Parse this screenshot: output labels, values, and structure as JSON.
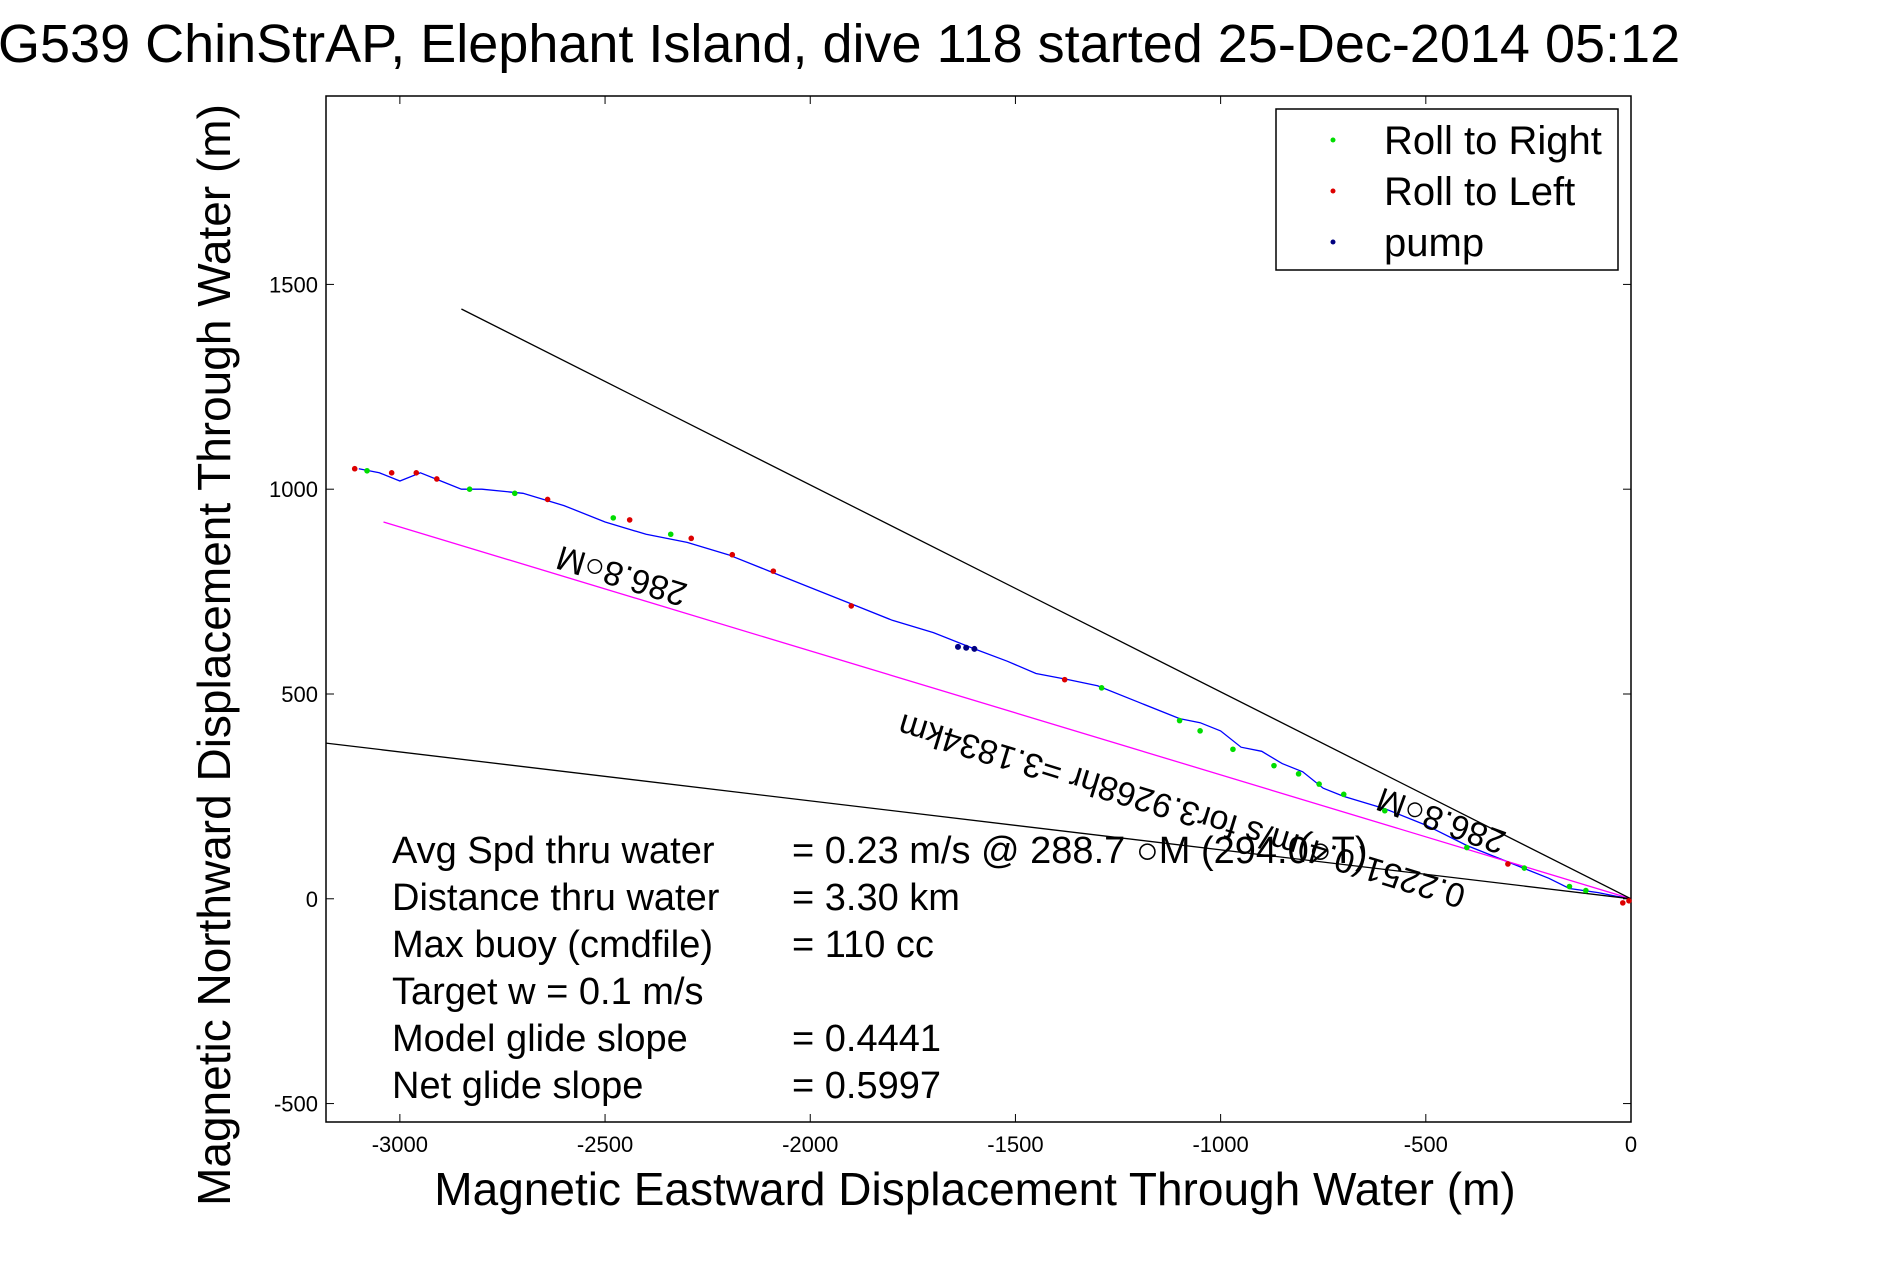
{
  "chart_data": {
    "type": "line",
    "title": "G539 ChinStrAP, Elephant Island, dive 118 started 25-Dec-2014 05:12",
    "xlabel": "Magnetic Eastward Displacement Through Water (m)",
    "ylabel": "Magnetic Northward Displacement Through Water (m)",
    "xlim": [
      -3180,
      0
    ],
    "ylim": [
      -545,
      1960
    ],
    "xticks": [
      -3000,
      -2500,
      -2000,
      -1500,
      -1000,
      -500,
      0
    ],
    "yticks": [
      -500,
      0,
      500,
      1000,
      1500
    ],
    "grid": false,
    "legend_position": "top-right",
    "legend": [
      {
        "label": "Roll to Right",
        "color": "#00dd00"
      },
      {
        "label": "Roll to Left",
        "color": "#dd0000"
      },
      {
        "label": "pump",
        "color": "#000080"
      }
    ],
    "series": [
      {
        "name": "track",
        "color": "#0000ff",
        "x": [
          0,
          -30,
          -80,
          -150,
          -200,
          -250,
          -300,
          -400,
          -500,
          -600,
          -700,
          -750,
          -800,
          -850,
          -900,
          -950,
          -1000,
          -1050,
          -1100,
          -1200,
          -1300,
          -1370,
          -1450,
          -1520,
          -1600,
          -1700,
          -1800,
          -1900,
          -2000,
          -2100,
          -2200,
          -2300,
          -2400,
          -2500,
          -2600,
          -2700,
          -2800,
          -2850,
          -2900,
          -2950,
          -3000,
          -3050,
          -3100
        ],
        "y": [
          0,
          5,
          15,
          25,
          50,
          70,
          90,
          130,
          180,
          220,
          250,
          270,
          310,
          330,
          360,
          370,
          410,
          430,
          440,
          480,
          520,
          535,
          550,
          580,
          610,
          650,
          680,
          720,
          760,
          800,
          840,
          870,
          890,
          920,
          960,
          990,
          1000,
          1000,
          1020,
          1040,
          1020,
          1040,
          1050
        ]
      },
      {
        "name": "course",
        "color": "#ff00ff",
        "x": [
          0,
          -3040
        ],
        "y": [
          0,
          920
        ]
      },
      {
        "name": "upper-bound",
        "color": "#000000",
        "x": [
          0,
          -2850
        ],
        "y": [
          0,
          1440
        ]
      },
      {
        "name": "lower-bound",
        "color": "#000000",
        "x": [
          0,
          -3180
        ],
        "y": [
          0,
          380
        ]
      }
    ],
    "markers": {
      "roll_right": {
        "color": "#00dd00",
        "x": [
          -3080,
          -2830,
          -2720,
          -2480,
          -2340,
          -1290,
          -1100,
          -1050,
          -970,
          -870,
          -810,
          -760,
          -700,
          -600,
          -400,
          -260,
          -150,
          -110
        ],
        "y": [
          1045,
          1000,
          990,
          930,
          890,
          515,
          435,
          410,
          365,
          325,
          305,
          280,
          255,
          215,
          125,
          75,
          30,
          20
        ]
      },
      "roll_left": {
        "color": "#dd0000",
        "x": [
          -3110,
          -3020,
          -2960,
          -2910,
          -2640,
          -2440,
          -2290,
          -2190,
          -2090,
          -1900,
          -1380,
          -300,
          -20,
          -5
        ],
        "y": [
          1050,
          1040,
          1040,
          1025,
          975,
          925,
          880,
          840,
          800,
          715,
          535,
          85,
          -10,
          -5
        ],
        "note": ""
      },
      "pump": {
        "color": "#000080",
        "x": [
          -1640,
          -1620,
          -1600
        ],
        "y": [
          615,
          613,
          610
        ]
      }
    },
    "annotations": {
      "upper_heading": "286.8○M",
      "course_text": "0.2251(0.4)m/s for3.9268hr =3.1834km",
      "course_heading": "286.8○M"
    },
    "stats": [
      {
        "label": "Avg Spd thru water",
        "value": "=  0.23 m/s @ 288.7  ○M (294.0○T)"
      },
      {
        "label": "Distance thru water",
        "value": "=  3.30 km"
      },
      {
        "label": "Max buoy (cmdfile)",
        "value": "= 110 cc"
      },
      {
        "label": "Target w    = 0.1 m/s",
        "value": ""
      },
      {
        "label": "Model glide slope",
        "value": "= 0.4441"
      },
      {
        "label": "Net glide slope",
        "value": "= 0.5997"
      }
    ]
  }
}
